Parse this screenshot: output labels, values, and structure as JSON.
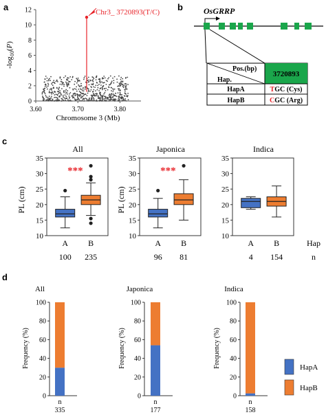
{
  "panel_letters": {
    "a": "a",
    "b": "b",
    "c": "c",
    "d": "d"
  },
  "colors": {
    "hapA": "#4472c4",
    "hapB": "#ed7d31",
    "gene": "#1aa64b",
    "peak": "#e8242a",
    "dots": "#444444",
    "sig": "#e8242a"
  },
  "chart_data": [
    {
      "id": "a",
      "type": "scatter",
      "xlabel": "Chromosome 3 (Mb)",
      "ylabel": "-log10(P)",
      "xlim": [
        3.6,
        3.85
      ],
      "ylim": [
        0,
        12
      ],
      "xticks": [
        "3.60",
        "3.70",
        "3.80"
      ],
      "yticks": [
        "0",
        "2",
        "4",
        "6",
        "8",
        "10",
        "12"
      ],
      "peak": {
        "x": 3.720893,
        "y": 11.0,
        "label": "Chr3_ 3720893(T/C)"
      },
      "background_points": {
        "x_range": [
          3.615,
          3.82
        ],
        "y_range": [
          0,
          3.3
        ],
        "count": 700
      }
    },
    {
      "id": "c-all",
      "type": "box",
      "title": "All",
      "ylabel": "PL (cm)",
      "ylim": [
        10,
        35
      ],
      "yticks": [
        "10",
        "15",
        "20",
        "25",
        "30",
        "35"
      ],
      "significance": "***",
      "series": [
        {
          "name": "A",
          "n": "100",
          "q1": 16.0,
          "median": 17.0,
          "q3": 18.5,
          "min": 12.5,
          "max": 22.5,
          "outliers": [
            24.5
          ]
        },
        {
          "name": "B",
          "n": "235",
          "q1": 20.0,
          "median": 21.5,
          "q3": 23.0,
          "min": 16.5,
          "max": 27.0,
          "outliers": [
            28.0,
            29.0,
            32.5,
            15.5,
            14.0
          ]
        }
      ]
    },
    {
      "id": "c-japonica",
      "type": "box",
      "title": "Japonica",
      "ylabel": "PL (cm)",
      "ylim": [
        10,
        35
      ],
      "yticks": [
        "10",
        "15",
        "20",
        "25",
        "30",
        "35"
      ],
      "significance": "***",
      "series": [
        {
          "name": "A",
          "n": "96",
          "q1": 16.0,
          "median": 17.0,
          "q3": 18.5,
          "min": 12.5,
          "max": 22.0,
          "outliers": [
            24.5
          ]
        },
        {
          "name": "B",
          "n": "81",
          "q1": 20.0,
          "median": 21.5,
          "q3": 23.5,
          "min": 15.0,
          "max": 28.0,
          "outliers": [
            32.5
          ]
        }
      ]
    },
    {
      "id": "c-indica",
      "type": "box",
      "title": "Indica",
      "ylabel": "",
      "ylim": [
        10,
        35
      ],
      "yticks": [
        "10",
        "15",
        "20",
        "25",
        "30",
        "35"
      ],
      "significance": "",
      "series": [
        {
          "name": "A",
          "n": "4",
          "q1": 19.0,
          "median": 21.0,
          "q3": 22.0,
          "min": 18.5,
          "max": 22.5,
          "outliers": []
        },
        {
          "name": "B",
          "n": "154",
          "q1": 19.5,
          "median": 21.0,
          "q3": 22.5,
          "min": 16.0,
          "max": 26.0,
          "outliers": []
        }
      ],
      "hap_label": "Hap",
      "n_label": "n"
    },
    {
      "id": "d-all",
      "type": "bar",
      "title": "All",
      "ylabel": "Frequency (%)",
      "ylim": [
        0,
        100
      ],
      "yticks": [
        "0",
        "20",
        "40",
        "60",
        "80",
        "100"
      ],
      "n_label": "n",
      "n": "335",
      "series": [
        {
          "name": "HapA",
          "values": [
            30
          ]
        },
        {
          "name": "HapB",
          "values": [
            70
          ]
        }
      ]
    },
    {
      "id": "d-japonica",
      "type": "bar",
      "title": "Japonica",
      "ylabel": "Frequency (%)",
      "ylim": [
        0,
        100
      ],
      "yticks": [
        "0",
        "20",
        "40",
        "60",
        "80",
        "100"
      ],
      "n_label": "n",
      "n": "177",
      "series": [
        {
          "name": "HapA",
          "values": [
            54
          ]
        },
        {
          "name": "HapB",
          "values": [
            46
          ]
        }
      ]
    },
    {
      "id": "d-indica",
      "type": "bar",
      "title": "Indica",
      "ylabel": "Frequency (%)",
      "ylim": [
        0,
        100
      ],
      "yticks": [
        "0",
        "20",
        "40",
        "60",
        "80",
        "100"
      ],
      "n_label": "n",
      "n": "158",
      "series": [
        {
          "name": "HapA",
          "values": [
            2.5
          ]
        },
        {
          "name": "HapB",
          "values": [
            97.5
          ]
        }
      ]
    }
  ],
  "legend": {
    "items": [
      "HapA",
      "HapB"
    ]
  },
  "gene_panel": {
    "gene_name": "OsGRRP",
    "table": {
      "header_top": "Pos.(bp)",
      "header_bottom": "Hap.",
      "position": "3720893",
      "rows": [
        {
          "hap": "HapA",
          "base": "T",
          "rest": "GC (Cys)"
        },
        {
          "hap": "HapB",
          "base": "C",
          "rest": "GC (Arg)"
        }
      ]
    }
  }
}
